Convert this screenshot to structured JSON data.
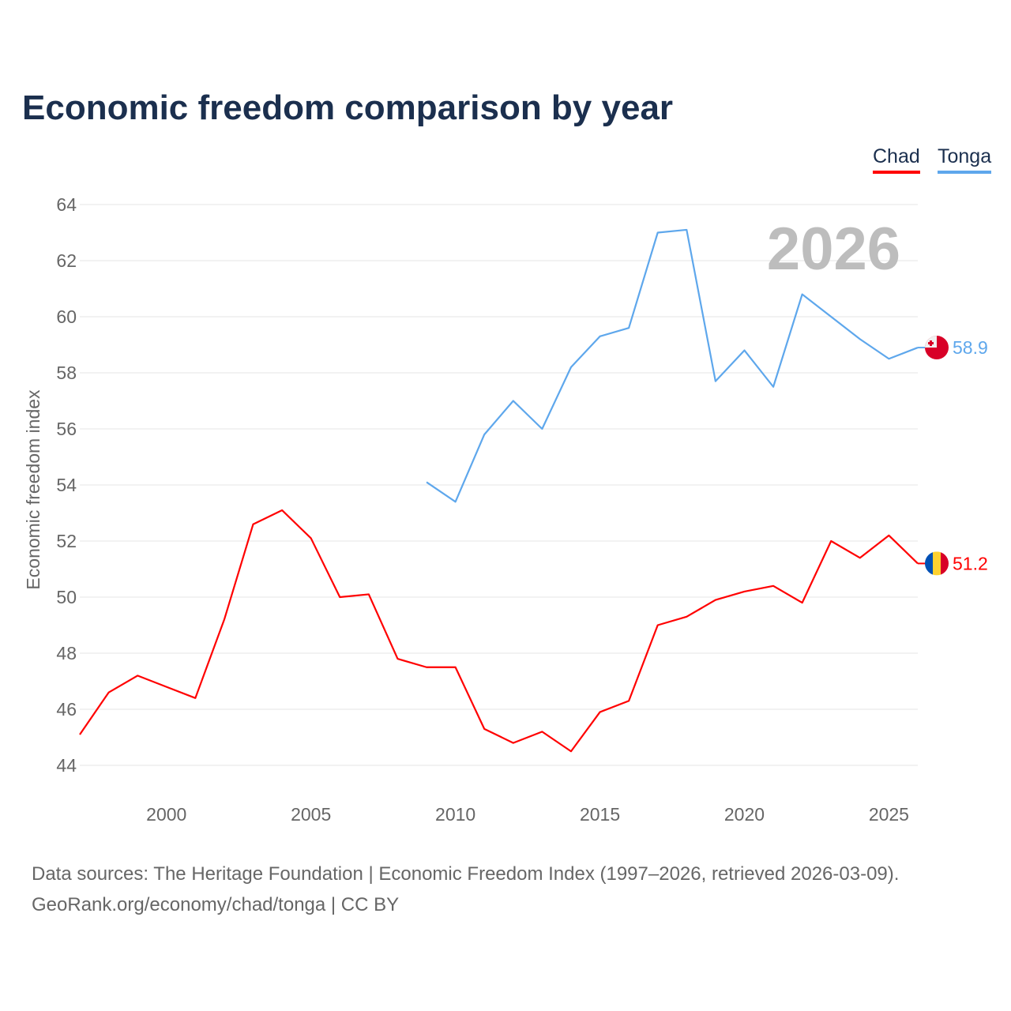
{
  "chart_data": {
    "type": "line",
    "title": "Economic freedom comparison by year",
    "ylabel": "Economic freedom index",
    "xlabel": "",
    "ylim": [
      44,
      64
    ],
    "xlim": [
      1997,
      2026
    ],
    "yticks": [
      44,
      46,
      48,
      50,
      52,
      54,
      56,
      58,
      60,
      62,
      64
    ],
    "xticks": [
      2000,
      2005,
      2010,
      2015,
      2020,
      2025
    ],
    "grid": true,
    "legend_position": "top-right",
    "watermark_year": "2026",
    "series": [
      {
        "name": "Chad",
        "color": "#ff0000",
        "end_label": "51.2",
        "x": [
          1997,
          1998,
          1999,
          2000,
          2001,
          2002,
          2003,
          2004,
          2005,
          2006,
          2007,
          2008,
          2009,
          2010,
          2011,
          2012,
          2013,
          2014,
          2015,
          2016,
          2017,
          2018,
          2019,
          2020,
          2021,
          2022,
          2023,
          2024,
          2025,
          2026
        ],
        "values": [
          45.1,
          46.6,
          47.2,
          46.8,
          46.4,
          49.2,
          52.6,
          53.1,
          52.1,
          50.0,
          50.1,
          47.8,
          47.5,
          47.5,
          45.3,
          44.8,
          45.2,
          44.5,
          45.9,
          46.3,
          49.0,
          49.3,
          49.9,
          50.2,
          50.4,
          49.8,
          52.0,
          51.4,
          52.2,
          51.2
        ]
      },
      {
        "name": "Tonga",
        "color": "#5ea7ec",
        "end_label": "58.9",
        "x": [
          2009,
          2010,
          2011,
          2012,
          2013,
          2014,
          2015,
          2016,
          2017,
          2018,
          2019,
          2020,
          2021,
          2022,
          2023,
          2024,
          2025,
          2026
        ],
        "values": [
          54.1,
          53.4,
          55.8,
          57.0,
          56.0,
          58.2,
          59.3,
          59.6,
          63.0,
          63.1,
          57.7,
          58.8,
          57.5,
          60.8,
          60.0,
          59.2,
          58.5,
          58.9
        ]
      }
    ]
  },
  "footer": {
    "line1": "Data sources: The Heritage Foundation | Economic Freedom Index (1997–2026, retrieved 2026-03-09).",
    "line2": "GeoRank.org/economy/chad/tonga | CC BY"
  }
}
